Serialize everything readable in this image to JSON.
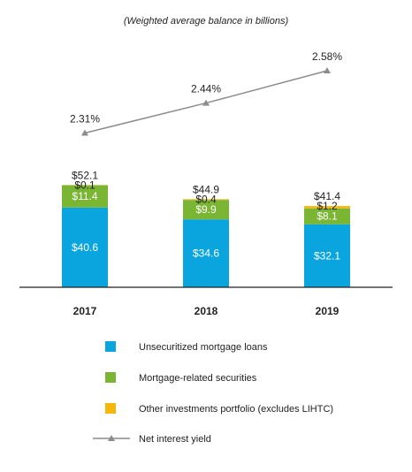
{
  "chart_data": {
    "type": "bar",
    "subtitle": "(Weighted average balance in billions)",
    "categories": [
      "2017",
      "2018",
      "2019"
    ],
    "ylim": [
      0,
      60
    ],
    "series": [
      {
        "name": "Unsecuritized mortgage loans",
        "values": [
          40.6,
          34.6,
          32.1
        ],
        "labels": [
          "$40.6",
          "$34.6",
          "$32.1"
        ],
        "color": "#0aa5df"
      },
      {
        "name": "Mortgage-related securities",
        "values": [
          11.4,
          9.9,
          8.1
        ],
        "labels": [
          "$11.4",
          "$9.9",
          "$8.1"
        ],
        "color": "#7ab534"
      },
      {
        "name": "Other investments portfolio (excludes LIHTC)",
        "values": [
          0.1,
          0.4,
          1.2
        ],
        "labels": [
          "$0.1",
          "$0.4",
          "$1.2"
        ],
        "color": "#f5b80a"
      }
    ],
    "totals": [
      52.1,
      44.9,
      41.4
    ],
    "total_labels": [
      "$52.1",
      "$44.9",
      "$41.4"
    ],
    "line_series": {
      "name": "Net interest yield",
      "values": [
        2.31,
        2.44,
        2.58
      ],
      "labels": [
        "2.31%",
        "2.44%",
        "2.58%"
      ],
      "color": "#8c8c8c"
    },
    "legend_position": "bottom"
  }
}
